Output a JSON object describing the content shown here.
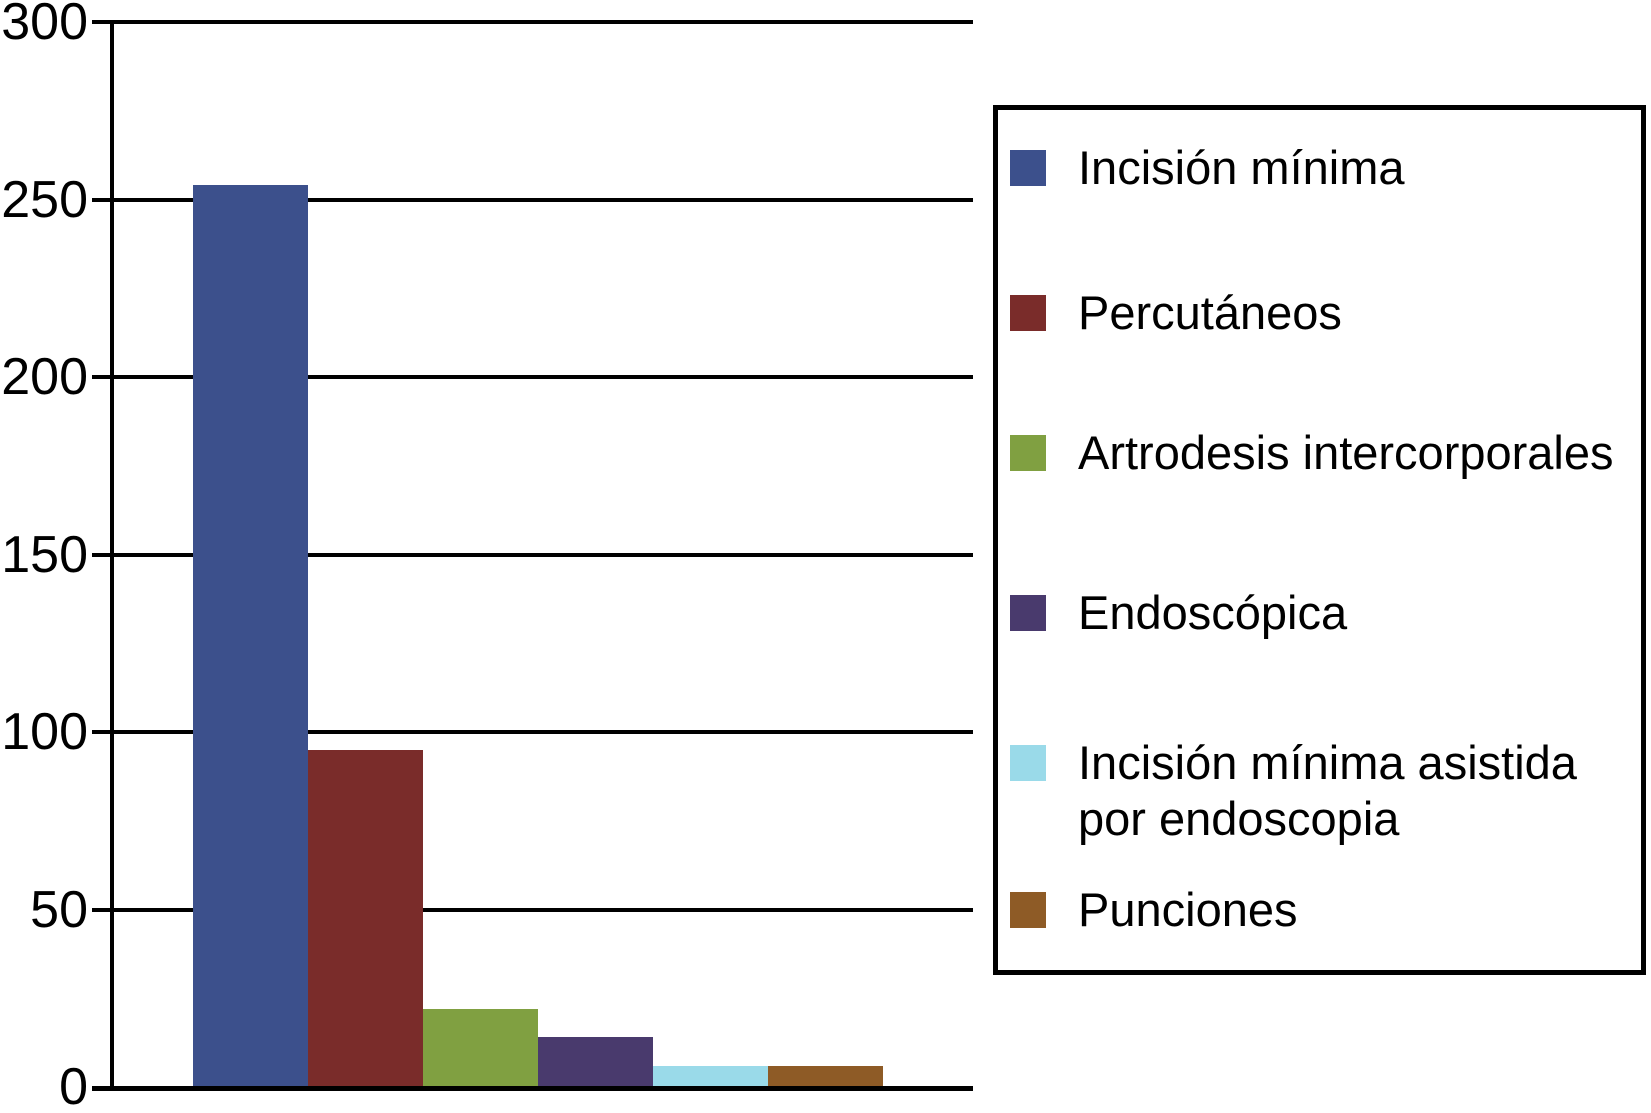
{
  "chart_data": {
    "type": "bar",
    "title": "",
    "xlabel": "",
    "ylabel": "",
    "categories": [
      "Incisión mínima",
      "Percutáneos",
      "Artrodesis intercorporales",
      "Endoscópica",
      "Incisión mínima asistida por endoscopia",
      "Punciones"
    ],
    "values": [
      254,
      95,
      22,
      14,
      6,
      6
    ],
    "colors": [
      "#3C508C",
      "#7A2C2A",
      "#80A041",
      "#493A6D",
      "#9ADAE9",
      "#8E5B26"
    ],
    "ylim": [
      0,
      300
    ],
    "yticks": [
      0,
      50,
      100,
      150,
      200,
      250,
      300
    ],
    "grid": true,
    "legend_position": "right",
    "axis_color": "#000000",
    "background_color": "#ffffff"
  }
}
